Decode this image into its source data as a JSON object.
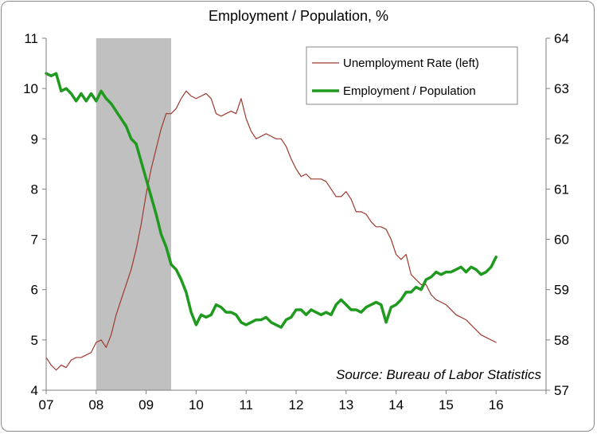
{
  "chart_data": {
    "type": "line",
    "title": "Employment / Population, %",
    "source": "Source: Bureau of Labor Statistics",
    "x_ticks": [
      "07",
      "08",
      "09",
      "10",
      "11",
      "12",
      "13",
      "14",
      "15",
      "16"
    ],
    "x_range": [
      2007.0,
      2017.0
    ],
    "y_left": {
      "range": [
        4,
        11
      ],
      "ticks": [
        "4",
        "5",
        "6",
        "7",
        "8",
        "9",
        "10",
        "11"
      ]
    },
    "y_right": {
      "range": [
        57,
        64
      ],
      "ticks": [
        "57",
        "58",
        "59",
        "60",
        "61",
        "62",
        "63",
        "64"
      ]
    },
    "recession": {
      "start": 2008.0,
      "end": 2009.5
    },
    "legend_placement": "top-right",
    "grid": false,
    "colors": {
      "unemployment": "#9b3a2e",
      "employment": "#1f9a1f",
      "recession": "#c0c0c0"
    },
    "series": [
      {
        "name": "Unemployment Rate (left)",
        "axis": "left",
        "x": [
          2007.0,
          2007.1,
          2007.2,
          2007.3,
          2007.4,
          2007.5,
          2007.6,
          2007.7,
          2007.8,
          2007.9,
          2008.0,
          2008.1,
          2008.2,
          2008.3,
          2008.4,
          2008.5,
          2008.6,
          2008.7,
          2008.8,
          2008.9,
          2009.0,
          2009.1,
          2009.2,
          2009.3,
          2009.4,
          2009.5,
          2009.6,
          2009.7,
          2009.8,
          2009.9,
          2010.0,
          2010.1,
          2010.2,
          2010.3,
          2010.4,
          2010.5,
          2010.6,
          2010.7,
          2010.8,
          2010.9,
          2011.0,
          2011.1,
          2011.2,
          2011.3,
          2011.4,
          2011.5,
          2011.6,
          2011.7,
          2011.8,
          2011.9,
          2012.0,
          2012.1,
          2012.2,
          2012.3,
          2012.4,
          2012.5,
          2012.6,
          2012.7,
          2012.8,
          2012.9,
          2013.0,
          2013.1,
          2013.2,
          2013.3,
          2013.4,
          2013.5,
          2013.6,
          2013.7,
          2013.8,
          2013.9,
          2014.0,
          2014.1,
          2014.2,
          2014.3,
          2014.4,
          2014.5,
          2014.6,
          2014.7,
          2014.8,
          2014.9,
          2015.0,
          2015.1,
          2015.2,
          2015.3,
          2015.4,
          2015.5,
          2015.6,
          2015.7,
          2015.8,
          2015.9,
          2016.0
        ],
        "values": [
          4.65,
          4.5,
          4.4,
          4.5,
          4.45,
          4.6,
          4.65,
          4.65,
          4.7,
          4.75,
          4.95,
          5.0,
          4.85,
          5.1,
          5.5,
          5.8,
          6.1,
          6.4,
          6.8,
          7.3,
          7.9,
          8.4,
          8.8,
          9.2,
          9.5,
          9.5,
          9.6,
          9.8,
          9.95,
          9.85,
          9.8,
          9.85,
          9.9,
          9.8,
          9.5,
          9.45,
          9.5,
          9.55,
          9.5,
          9.8,
          9.4,
          9.15,
          9.0,
          9.05,
          9.1,
          9.05,
          9.0,
          9.0,
          8.85,
          8.6,
          8.4,
          8.25,
          8.3,
          8.2,
          8.2,
          8.2,
          8.15,
          8.0,
          7.85,
          7.85,
          7.95,
          7.8,
          7.55,
          7.55,
          7.5,
          7.35,
          7.25,
          7.25,
          7.2,
          7.0,
          6.7,
          6.6,
          6.7,
          6.3,
          6.2,
          6.1,
          6.1,
          5.9,
          5.8,
          5.75,
          5.7,
          5.6,
          5.5,
          5.45,
          5.4,
          5.3,
          5.2,
          5.1,
          5.05,
          5.0,
          4.95
        ]
      },
      {
        "name": "Employment / Population",
        "axis": "right",
        "x": [
          2007.0,
          2007.1,
          2007.2,
          2007.3,
          2007.4,
          2007.5,
          2007.6,
          2007.7,
          2007.8,
          2007.9,
          2008.0,
          2008.1,
          2008.2,
          2008.3,
          2008.4,
          2008.5,
          2008.6,
          2008.7,
          2008.8,
          2008.9,
          2009.0,
          2009.1,
          2009.2,
          2009.3,
          2009.4,
          2009.5,
          2009.6,
          2009.7,
          2009.8,
          2009.9,
          2010.0,
          2010.1,
          2010.2,
          2010.3,
          2010.4,
          2010.5,
          2010.6,
          2010.7,
          2010.8,
          2010.9,
          2011.0,
          2011.1,
          2011.2,
          2011.3,
          2011.4,
          2011.5,
          2011.6,
          2011.7,
          2011.8,
          2011.9,
          2012.0,
          2012.1,
          2012.2,
          2012.3,
          2012.4,
          2012.5,
          2012.6,
          2012.7,
          2012.8,
          2012.9,
          2013.0,
          2013.1,
          2013.2,
          2013.3,
          2013.4,
          2013.5,
          2013.6,
          2013.7,
          2013.8,
          2013.9,
          2014.0,
          2014.1,
          2014.2,
          2014.3,
          2014.4,
          2014.5,
          2014.6,
          2014.7,
          2014.8,
          2014.9,
          2015.0,
          2015.1,
          2015.2,
          2015.3,
          2015.4,
          2015.5,
          2015.6,
          2015.7,
          2015.8,
          2015.9,
          2016.0
        ],
        "values": [
          63.3,
          63.25,
          63.3,
          62.95,
          63.0,
          62.9,
          62.75,
          62.9,
          62.75,
          62.9,
          62.75,
          62.95,
          62.8,
          62.7,
          62.55,
          62.4,
          62.25,
          62.0,
          61.9,
          61.55,
          61.2,
          60.85,
          60.5,
          60.1,
          59.85,
          59.5,
          59.4,
          59.2,
          58.95,
          58.55,
          58.3,
          58.5,
          58.45,
          58.5,
          58.7,
          58.65,
          58.55,
          58.55,
          58.5,
          58.35,
          58.3,
          58.35,
          58.4,
          58.4,
          58.45,
          58.35,
          58.3,
          58.25,
          58.4,
          58.45,
          58.6,
          58.6,
          58.5,
          58.6,
          58.55,
          58.5,
          58.55,
          58.5,
          58.7,
          58.8,
          58.7,
          58.6,
          58.6,
          58.55,
          58.65,
          58.7,
          58.75,
          58.7,
          58.35,
          58.65,
          58.7,
          58.8,
          58.95,
          58.95,
          59.05,
          59.0,
          59.2,
          59.25,
          59.35,
          59.3,
          59.35,
          59.35,
          59.4,
          59.45,
          59.35,
          59.45,
          59.4,
          59.3,
          59.35,
          59.45,
          59.65
        ]
      }
    ]
  }
}
